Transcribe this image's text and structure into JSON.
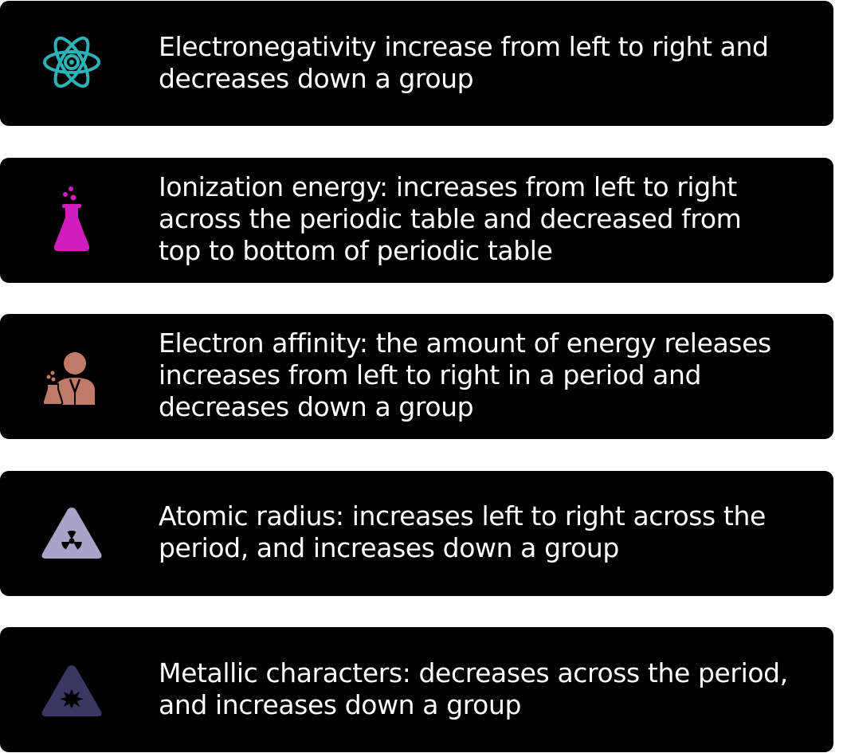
{
  "cards": [
    {
      "icon": "atom-icon",
      "icon_color": "#2bb3b8",
      "text": "Electronegativity increase from left to right and\ndecreases down a group"
    },
    {
      "icon": "flask-icon",
      "icon_color": "#d21dbe",
      "text": "Ionization energy: increases from left to right\nacross the periodic table and decreased from\ntop to bottom of periodic table"
    },
    {
      "icon": "scientist-icon",
      "icon_color": "#c07a68",
      "text": "Electron affinity: the amount of energy releases\nincreases from left to right in a period and\ndecreases down a group"
    },
    {
      "icon": "radiation-warning-icon",
      "icon_color": "#a9a3c9",
      "text": "Atomic radius: increases left to right across the\nperiod, and increases down a group"
    },
    {
      "icon": "explosive-warning-icon",
      "icon_color": "#3a3763",
      "text": "Metallic characters: decreases across the period,\nand increases down a group"
    }
  ]
}
